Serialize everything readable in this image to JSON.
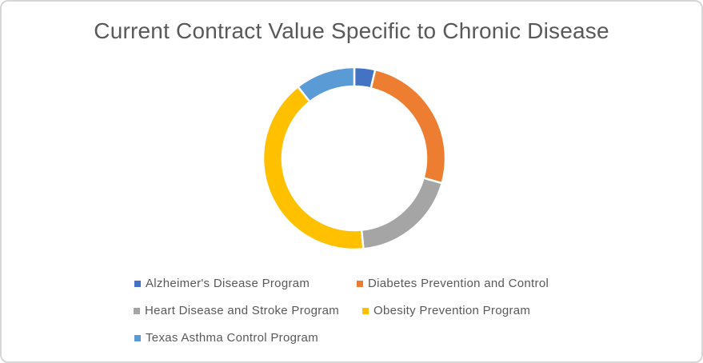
{
  "frame": {
    "background": "#ffffff",
    "border_color": "#d6d6d6"
  },
  "chart_data": {
    "type": "pie",
    "subtype": "doughnut",
    "title": "Current Contract Value Specific to Chronic Disease",
    "title_color": "#595959",
    "categories": [
      "Alzheimer's Disease Program",
      "Diabetes Prevention and Control",
      "Heart Disease and Stroke Program",
      "Obesity Prevention Program",
      "Texas Asthma Control Program"
    ],
    "values_percent": [
      3.7,
      25.7,
      19.0,
      41.0,
      10.6
    ],
    "colors": [
      "#4472C4",
      "#ED7D31",
      "#A5A5A5",
      "#FFC000",
      "#5B9BD5"
    ],
    "start_angle_deg": 0,
    "direction": "clockwise",
    "hole_ratio": 0.79,
    "slice_border_color": "#ffffff",
    "legend_position": "bottom",
    "legend_text_color": "#595959",
    "data_labels": false,
    "grid": false
  }
}
